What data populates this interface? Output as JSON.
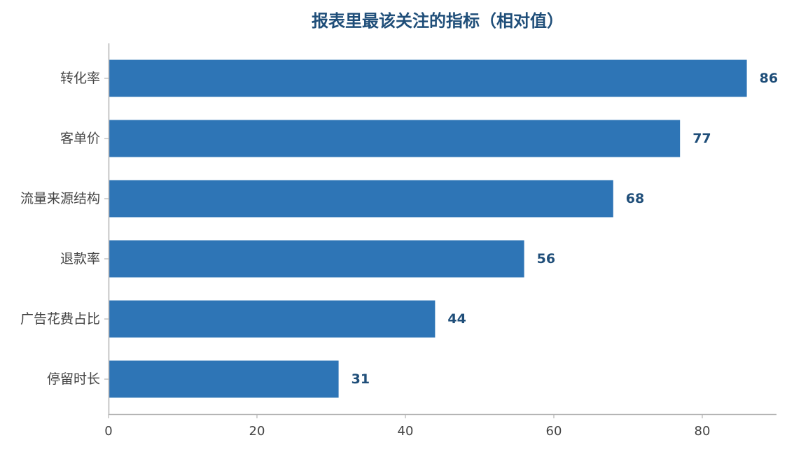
{
  "chart_data": {
    "type": "bar",
    "orientation": "horizontal",
    "title": "报表里最该关注的指标（相对值）",
    "xlabel": "",
    "ylabel": "",
    "categories": [
      "转化率",
      "客单价",
      "流量来源结构",
      "退款率",
      "广告花费占比",
      "停留时长"
    ],
    "values": [
      86,
      77,
      68,
      56,
      44,
      31
    ],
    "xlim": [
      0,
      90
    ],
    "xticks": [
      0,
      20,
      40,
      60,
      80
    ],
    "grid": false,
    "legend": "none",
    "bar_color": "#2e75b6",
    "label_color": "#1f4e79"
  }
}
